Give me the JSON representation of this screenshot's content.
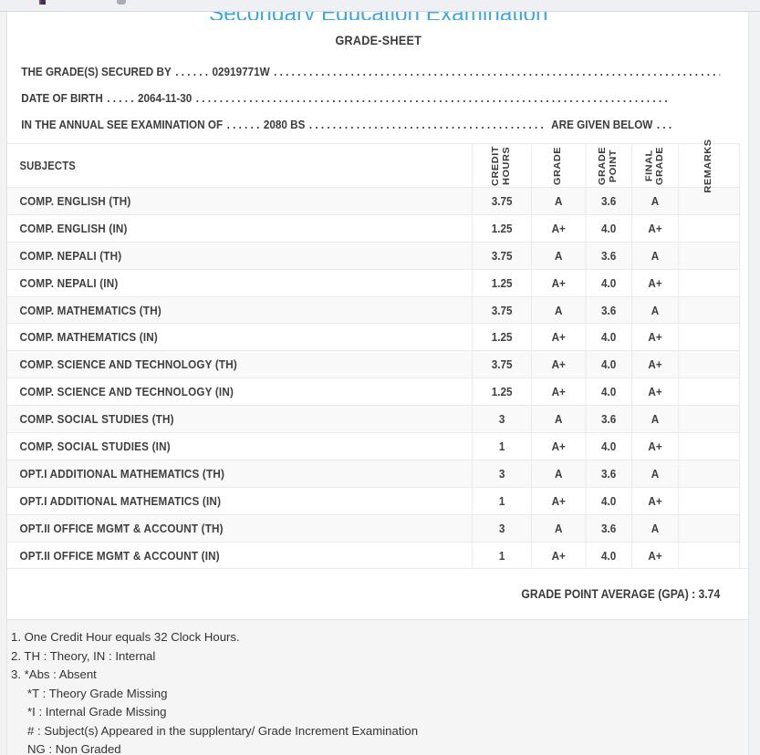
{
  "page": {
    "title": "Secondary Education Examination",
    "sheet_heading": "GRADE-SHEET"
  },
  "colors": {
    "title_blue": "#41a7e1",
    "text_dark": "#3c3c3c",
    "alt_row_bg": "#f9f9f9",
    "table_border": "#e8e9ea",
    "page_bg": "#f1f2f4",
    "footer_bg": "#f5f5f6"
  },
  "info": {
    "filler_dots": ". . . . . . . . . . . . . . . . . . . . . . . . . . . . . . . . . . . . . . . . . . . . . . . . . . . . . . . . . . . . . . . . . . . . . . . . . . . . . . . .",
    "line1": {
      "label": "THE GRADE(S) SECURED BY",
      "dots": ". . . . . .",
      "value": "02919771W"
    },
    "line2": {
      "label": "DATE OF BIRTH",
      "dots": ". . . . .",
      "value": "2064-11-30"
    },
    "line3": {
      "label": "IN THE ANNUAL SEE EXAMINATION OF",
      "dots": ". . . . . .",
      "value": "2080 BS",
      "tail": "ARE GIVEN BELOW",
      "tail_dots": ". . ."
    }
  },
  "table": {
    "headers": {
      "subjects": "SUBJECTS",
      "credit_hours": "CREDIT\nHOURS",
      "grade": "GRADE",
      "grade_point": "GRADE\nPOINT",
      "final_grade": "FINAL\nGRADE",
      "remarks": "REMARKS"
    },
    "rows": [
      {
        "subject": "COMP. ENGLISH (TH)",
        "credit": "3.75",
        "grade": "A",
        "point": "3.6",
        "final": "A",
        "remarks": ""
      },
      {
        "subject": "COMP. ENGLISH (IN)",
        "credit": "1.25",
        "grade": "A+",
        "point": "4.0",
        "final": "A+",
        "remarks": ""
      },
      {
        "subject": "COMP. NEPALI (TH)",
        "credit": "3.75",
        "grade": "A",
        "point": "3.6",
        "final": "A",
        "remarks": ""
      },
      {
        "subject": "COMP. NEPALI (IN)",
        "credit": "1.25",
        "grade": "A+",
        "point": "4.0",
        "final": "A+",
        "remarks": ""
      },
      {
        "subject": "COMP. MATHEMATICS (TH)",
        "credit": "3.75",
        "grade": "A",
        "point": "3.6",
        "final": "A",
        "remarks": ""
      },
      {
        "subject": "COMP. MATHEMATICS (IN)",
        "credit": "1.25",
        "grade": "A+",
        "point": "4.0",
        "final": "A+",
        "remarks": ""
      },
      {
        "subject": "COMP. SCIENCE AND TECHNOLOGY (TH)",
        "credit": "3.75",
        "grade": "A+",
        "point": "4.0",
        "final": "A+",
        "remarks": ""
      },
      {
        "subject": "COMP. SCIENCE AND TECHNOLOGY (IN)",
        "credit": "1.25",
        "grade": "A+",
        "point": "4.0",
        "final": "A+",
        "remarks": ""
      },
      {
        "subject": "COMP. SOCIAL STUDIES (TH)",
        "credit": "3",
        "grade": "A",
        "point": "3.6",
        "final": "A",
        "remarks": ""
      },
      {
        "subject": "COMP. SOCIAL STUDIES (IN)",
        "credit": "1",
        "grade": "A+",
        "point": "4.0",
        "final": "A+",
        "remarks": ""
      },
      {
        "subject": "OPT.I ADDITIONAL MATHEMATICS (TH)",
        "credit": "3",
        "grade": "A",
        "point": "3.6",
        "final": "A",
        "remarks": ""
      },
      {
        "subject": "OPT.I ADDITIONAL MATHEMATICS (IN)",
        "credit": "1",
        "grade": "A+",
        "point": "4.0",
        "final": "A+",
        "remarks": ""
      },
      {
        "subject": "OPT.II OFFICE MGMT & ACCOUNT (TH)",
        "credit": "3",
        "grade": "A",
        "point": "3.6",
        "final": "A",
        "remarks": ""
      },
      {
        "subject": "OPT.II OFFICE MGMT & ACCOUNT (IN)",
        "credit": "1",
        "grade": "A+",
        "point": "4.0",
        "final": "A+",
        "remarks": ""
      }
    ],
    "gpa_text": "GRADE POINT AVERAGE (GPA) : 3.74"
  },
  "footer": {
    "notes": [
      {
        "text": "1. One Credit Hour equals 32 Clock Hours.",
        "indent": 0
      },
      {
        "text": "2. TH : Theory, IN : Internal",
        "indent": 0
      },
      {
        "text": "3. *Abs : Absent",
        "indent": 0
      },
      {
        "text": "*T : Theory Grade Missing",
        "indent": 1
      },
      {
        "text": "*I : Internal Grade Missing",
        "indent": 1
      },
      {
        "text": "# : Subject(s) Appeared in the supplentary/ Grade Increment Examination",
        "indent": 1
      },
      {
        "text": "NG : Non Graded",
        "indent": 1
      }
    ]
  }
}
